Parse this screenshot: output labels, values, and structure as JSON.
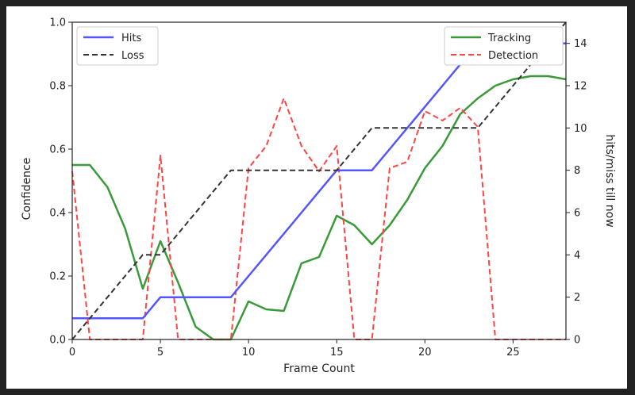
{
  "chart_data": {
    "type": "line",
    "xlabel": "Frame Count",
    "ylabel_left": "Confidence",
    "ylabel_right": "hits/miss till now",
    "x_ticks": [
      "0",
      "5",
      "10",
      "15",
      "20",
      "25"
    ],
    "y_left_ticks": [
      "0.0",
      "0.2",
      "0.4",
      "0.6",
      "0.8",
      "1.0"
    ],
    "y_right_ticks": [
      "0",
      "2",
      "4",
      "6",
      "8",
      "10",
      "12",
      "14"
    ],
    "xlim": [
      0,
      28
    ],
    "ylim_left": [
      0,
      1.0
    ],
    "ylim_right": [
      0,
      15
    ],
    "grid": false,
    "legend_left": {
      "placement": "top-left",
      "entries": [
        "Hits",
        "Loss"
      ]
    },
    "legend_right": {
      "placement": "top-right",
      "entries": [
        "Tracking",
        "Detection"
      ]
    },
    "series_right_axis": [
      {
        "name": "Hits",
        "color": "#5555ff",
        "style": "solid",
        "points": [
          [
            0,
            1
          ],
          [
            4,
            1
          ],
          [
            5,
            2
          ],
          [
            9,
            2
          ],
          [
            10,
            3
          ],
          [
            11,
            4
          ],
          [
            12,
            5
          ],
          [
            13,
            6
          ],
          [
            14,
            7
          ],
          [
            15,
            8
          ],
          [
            16,
            8
          ],
          [
            17,
            8
          ],
          [
            18,
            9
          ],
          [
            19,
            10
          ],
          [
            20,
            11
          ],
          [
            21,
            12
          ],
          [
            22,
            13
          ],
          [
            23,
            14
          ],
          [
            28,
            14
          ]
        ]
      },
      {
        "name": "Loss",
        "color": "#333333",
        "style": "dashed",
        "points": [
          [
            0,
            0
          ],
          [
            1,
            1
          ],
          [
            2,
            2
          ],
          [
            3,
            3
          ],
          [
            4,
            4
          ],
          [
            5,
            4
          ],
          [
            6,
            5
          ],
          [
            7,
            6
          ],
          [
            8,
            7
          ],
          [
            9,
            8
          ],
          [
            15,
            8
          ],
          [
            16,
            9
          ],
          [
            17,
            10
          ],
          [
            23,
            10
          ],
          [
            24,
            11
          ],
          [
            25,
            12
          ],
          [
            26,
            13
          ],
          [
            27,
            14
          ],
          [
            28,
            15
          ]
        ]
      }
    ],
    "series_left_axis": [
      {
        "name": "Tracking",
        "color": "#3a9a3a",
        "style": "solid",
        "points": [
          [
            0,
            0.55
          ],
          [
            1,
            0.55
          ],
          [
            2,
            0.48
          ],
          [
            3,
            0.35
          ],
          [
            4,
            0.16
          ],
          [
            5,
            0.31
          ],
          [
            6,
            0.18
          ],
          [
            7,
            0.04
          ],
          [
            8,
            0.0
          ],
          [
            9,
            0.0
          ],
          [
            10,
            0.12
          ],
          [
            11,
            0.095
          ],
          [
            12,
            0.09
          ],
          [
            13,
            0.24
          ],
          [
            14,
            0.26
          ],
          [
            15,
            0.39
          ],
          [
            16,
            0.36
          ],
          [
            17,
            0.3
          ],
          [
            18,
            0.36
          ],
          [
            19,
            0.44
          ],
          [
            20,
            0.54
          ],
          [
            21,
            0.61
          ],
          [
            22,
            0.71
          ],
          [
            23,
            0.76
          ],
          [
            24,
            0.8
          ],
          [
            25,
            0.82
          ],
          [
            26,
            0.83
          ],
          [
            27,
            0.83
          ],
          [
            28,
            0.82
          ]
        ]
      },
      {
        "name": "Detection",
        "color": "#ff4444",
        "style": "dashed",
        "points": [
          [
            0,
            0.53
          ],
          [
            1,
            0.0
          ],
          [
            2,
            0.0
          ],
          [
            3,
            0.0
          ],
          [
            4,
            0.0
          ],
          [
            5,
            0.58
          ],
          [
            6,
            0.0
          ],
          [
            7,
            0.0
          ],
          [
            8,
            0.0
          ],
          [
            9,
            0.0
          ],
          [
            10,
            0.54
          ],
          [
            11,
            0.61
          ],
          [
            12,
            0.76
          ],
          [
            13,
            0.61
          ],
          [
            14,
            0.53
          ],
          [
            15,
            0.61
          ],
          [
            16,
            0.0
          ],
          [
            17,
            0.0
          ],
          [
            18,
            0.54
          ],
          [
            19,
            0.56
          ],
          [
            20,
            0.72
          ],
          [
            21,
            0.69
          ],
          [
            22,
            0.73
          ],
          [
            23,
            0.67
          ],
          [
            24,
            0.0
          ],
          [
            25,
            0.0
          ],
          [
            26,
            0.0
          ],
          [
            27,
            0.0
          ],
          [
            28,
            0.0
          ]
        ]
      }
    ]
  }
}
